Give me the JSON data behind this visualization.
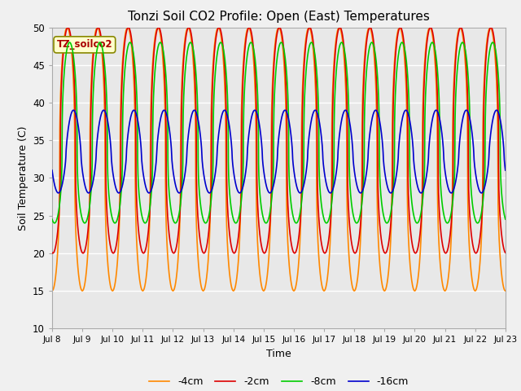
{
  "title": "Tonzi Soil CO2 Profile: Open (East) Temperatures",
  "xlabel": "Time",
  "ylabel": "Soil Temperature (C)",
  "ylim": [
    10,
    50
  ],
  "annotation": "TZ_soilco2",
  "legend": [
    "-2cm",
    "-4cm",
    "-8cm",
    "-16cm"
  ],
  "colors": [
    "#dd0000",
    "#ff8800",
    "#00cc00",
    "#0000cc"
  ],
  "background_color": "#e8e8e8",
  "grid_color": "#ffffff",
  "linewidth": 1.2,
  "xtick_labels": [
    "Jul 8",
    "Jul 9",
    "Jul 10",
    "Jul 11",
    "Jul 12",
    "Jul 13",
    "Jul 14",
    "Jul 15",
    "Jul 16",
    "Jul 17",
    "Jul 18",
    "Jul 19",
    "Jul 20",
    "Jul 21",
    "Jul 22",
    "Jul 23"
  ],
  "n_points": 3000,
  "n_days": 15,
  "mean_2cm": 33,
  "mean_4cm": 32,
  "mean_8cm": 34,
  "mean_16cm": 33,
  "amp_up_2cm": 17,
  "amp_dn_2cm": 13,
  "amp_up_4cm": 18,
  "amp_dn_4cm": 17,
  "amp_up_8cm": 14,
  "amp_dn_8cm": 10,
  "amp_up_16cm": 6,
  "amp_dn_16cm": 5,
  "phase_2cm": 0.15,
  "phase_4cm": 0.0,
  "phase_8cm": 0.5,
  "phase_16cm": 1.3,
  "spiky_power": 0.4
}
